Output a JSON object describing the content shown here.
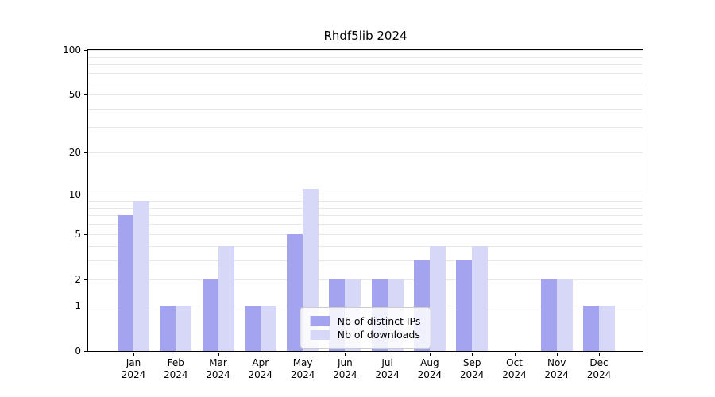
{
  "chart_data": {
    "type": "bar",
    "title": "Rhdf5lib 2024",
    "year": "2024",
    "categories": [
      "Jan",
      "Feb",
      "Mar",
      "Apr",
      "May",
      "Jun",
      "Jul",
      "Aug",
      "Sep",
      "Oct",
      "Nov",
      "Dec"
    ],
    "series": [
      {
        "name": "Nb of distinct IPs",
        "color": "#a3a3ef",
        "values": [
          7,
          1,
          2,
          1,
          5,
          2,
          2,
          3,
          3,
          0,
          2,
          1
        ]
      },
      {
        "name": "Nb of downloads",
        "color": "#d7d7f8",
        "values": [
          9,
          1,
          4,
          1,
          11,
          2,
          2,
          4,
          4,
          0,
          2,
          1
        ]
      }
    ],
    "yscale": "log1p",
    "yticks": [
      0,
      1,
      2,
      5,
      10,
      20,
      50,
      100
    ],
    "minor_gridlines": [
      1,
      2,
      3,
      4,
      5,
      6,
      7,
      8,
      9,
      10,
      20,
      30,
      40,
      50,
      60,
      70,
      80,
      90,
      100
    ],
    "ylim": [
      0,
      100
    ],
    "xlabel": "",
    "ylabel": "",
    "grid": true,
    "legend_position": "lower center"
  }
}
